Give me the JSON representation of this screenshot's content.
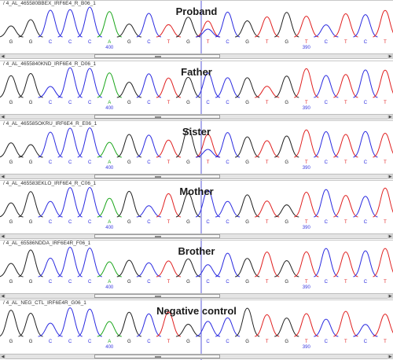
{
  "colors": {
    "G": "#202020",
    "A": "#1aa51a",
    "C": "#2a2ae0",
    "T": "#e02020",
    "cursor": "#3030d0"
  },
  "bases": [
    "G",
    "G",
    "C",
    "C",
    "C",
    "A",
    "G",
    "C",
    "T",
    "G",
    "T",
    "C",
    "G",
    "T",
    "G",
    "T",
    "C",
    "T",
    "C",
    "T"
  ],
  "panels": [
    {
      "file": "/ 4_AL_465580BBEX_IRF6E4_R_B06_1",
      "label": "Proband",
      "calls": [
        "G",
        "G",
        "C",
        "C",
        "C",
        "A",
        "G",
        "C",
        "T",
        "G",
        "T",
        "C",
        "G",
        "T",
        "G",
        "T",
        "C",
        "T",
        "C",
        "T"
      ],
      "ticks": [
        "400",
        "390"
      ]
    },
    {
      "file": "/ 4_AL_4655840KND_IRF6E4_R_D06_1",
      "label": "Father",
      "calls": [
        "G",
        "G",
        "C",
        "C",
        "C",
        "A",
        "G",
        "C",
        "T",
        "G",
        "C",
        "C",
        "G",
        "T",
        "G",
        "T",
        "C",
        "T",
        "C",
        "T"
      ],
      "ticks": [
        "400",
        "390"
      ]
    },
    {
      "file": "/ 4_AL_465585OKRU_IRF6E4_R_E06_1",
      "label": "Sister",
      "calls": [
        "G",
        "G",
        "C",
        "C",
        "C",
        "A",
        "G",
        "C",
        "T",
        "G",
        "T",
        "C",
        "G",
        "T",
        "G",
        "T",
        "C",
        "T",
        "C",
        "T"
      ],
      "ticks": [
        "400",
        "390"
      ]
    },
    {
      "file": "/ 4_AL_465583EKLO_IRF6E4_R_C06_1",
      "label": "Mother",
      "calls": [
        "G",
        "G",
        "C",
        "C",
        "C",
        "A",
        "G",
        "C",
        "T",
        "G",
        "C",
        "C",
        "G",
        "T",
        "G",
        "T",
        "C",
        "T",
        "C",
        "T"
      ],
      "ticks": [
        "400",
        "390"
      ]
    },
    {
      "file": "/ 4_AL_65586NDDA_IRF6E4R_F06_1",
      "label": "Brother",
      "calls": [
        "G",
        "G",
        "C",
        "C",
        "C",
        "A",
        "G",
        "C",
        "T",
        "G",
        "C",
        "C",
        "G",
        "T",
        "G",
        "T",
        "C",
        "T",
        "C",
        "T"
      ],
      "ticks": [
        "400",
        "390"
      ]
    },
    {
      "file": "/ 4_AL_NEG_CTL_IRF6E4R_G06_1",
      "label": "Negative control",
      "calls": [
        "G",
        "G",
        "C",
        "C",
        "C",
        "A",
        "G",
        "C",
        "T",
        "G",
        "C",
        "C",
        "G",
        "T",
        "G",
        "T",
        "C",
        "T",
        "C",
        "T"
      ],
      "ticks": [
        "400",
        "390"
      ]
    }
  ]
}
